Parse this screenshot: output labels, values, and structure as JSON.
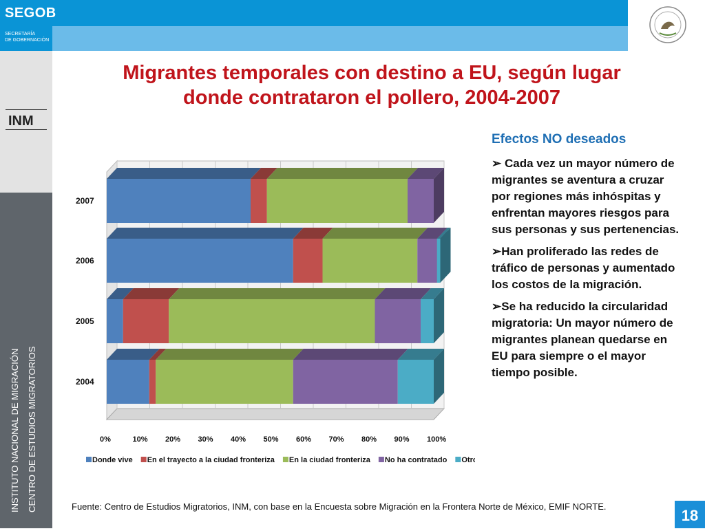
{
  "header": {
    "brand": "SEGOB",
    "secretaria_line1": "SECRETARÍA",
    "secretaria_line2": "DE GOBERNACIÓN"
  },
  "sidebar": {
    "vertical_line1": "INSTITUTO NACIONAL DE MIGRACIÓN",
    "vertical_line2": "CENTRO DE ESTUDIOS MIGRATORIOS"
  },
  "slide": {
    "title_line1": "Migrantes temporales con destino a EU, según lugar",
    "title_line2": "donde contrataron el pollero, 2004-2007",
    "efectos_heading": "Efectos NO deseados",
    "bullets": [
      "➢ Cada vez un mayor número de migrantes se aventura a cruzar por regiones más inhóspitas y enfrentan mayores riesgos para sus personas y sus pertenencias.",
      "➢Han proliferado las redes de tráfico de personas y aumentado los costos de la migración.",
      "➢Se ha reducido la circularidad migratoria: Un mayor número de migrantes planean quedarse en EU para siempre o el mayor tiempo posible."
    ],
    "source": "Fuente: Centro de Estudios Migratorios, INM, con base en la Encuesta sobre Migración en la Frontera Norte de México, EMIF NORTE.",
    "page_number": "18"
  },
  "chart_data": {
    "type": "bar",
    "orientation": "horizontal",
    "stacked": true,
    "percent": true,
    "categories": [
      "2007",
      "2006",
      "2005",
      "2004"
    ],
    "series": [
      {
        "name": "Donde vive",
        "color": "#4f81bd",
        "values": [
          44,
          57,
          5,
          13
        ]
      },
      {
        "name": "En el trayecto a la ciudad fronteriza",
        "color": "#c0504d",
        "values": [
          5,
          9,
          14,
          2
        ]
      },
      {
        "name": "En la ciudad fronteriza",
        "color": "#9bbb59",
        "values": [
          43,
          29,
          63,
          42
        ]
      },
      {
        "name": "No ha contratado",
        "color": "#8064a2",
        "values": [
          8,
          6,
          14,
          32
        ]
      },
      {
        "name": "Otro lugar",
        "color": "#4bacc6",
        "values": [
          0,
          1,
          4,
          11
        ]
      }
    ],
    "xticks": [
      "0%",
      "10%",
      "20%",
      "30%",
      "40%",
      "50%",
      "60%",
      "70%",
      "80%",
      "90%",
      "100%"
    ],
    "xlim": [
      0,
      100
    ],
    "grid": true,
    "legend": "bottom"
  }
}
